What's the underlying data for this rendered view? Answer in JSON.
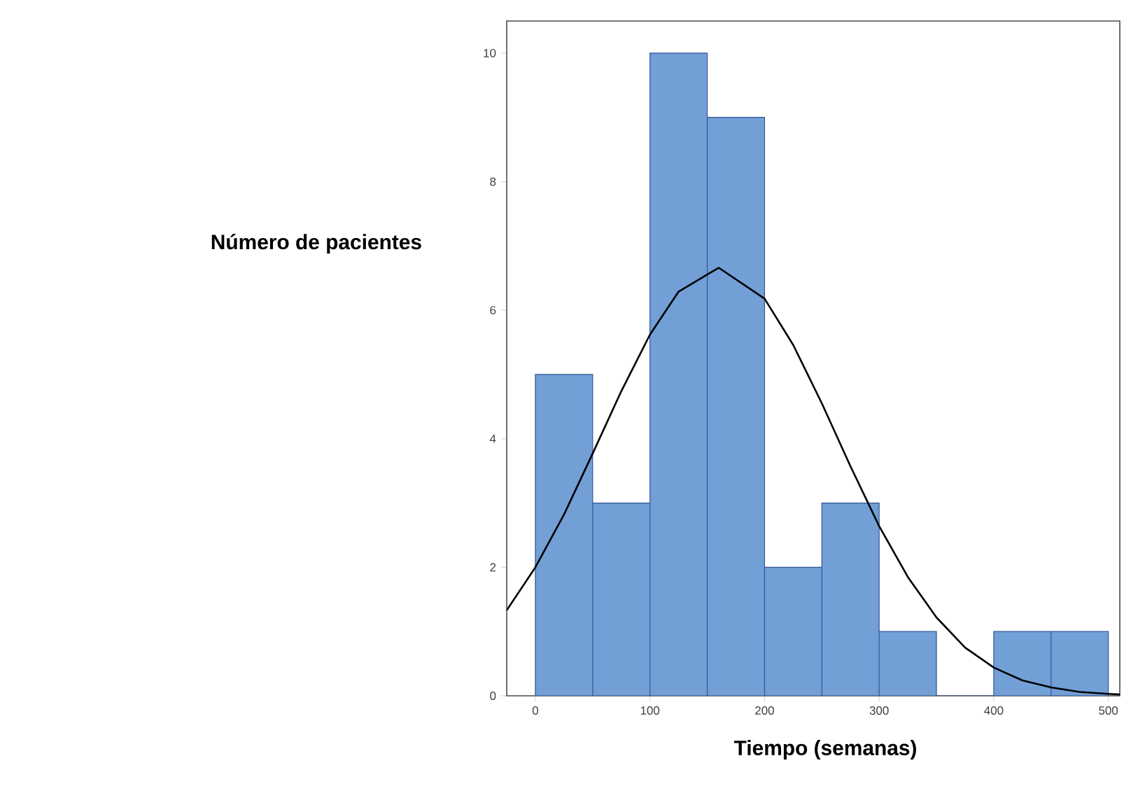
{
  "chart_data": {
    "type": "histogram",
    "xlabel": "Tiempo (semanas)",
    "ylabel": "Número de pacientes",
    "bins": [
      0,
      50,
      100,
      150,
      200,
      250,
      300,
      350,
      400,
      450,
      500
    ],
    "values": [
      5,
      3,
      10,
      9,
      2,
      3,
      1,
      0,
      1,
      1
    ],
    "color": "#729fd6",
    "series": [
      {
        "type": "line",
        "color": "#000000",
        "x": [
          -25,
          0,
          25,
          50,
          75,
          100,
          125,
          160,
          200,
          225,
          250,
          275,
          300,
          325,
          350,
          375,
          400,
          425,
          450,
          475,
          500,
          510
        ],
        "values": [
          1.33,
          2.0,
          2.82,
          3.77,
          4.74,
          5.62,
          6.29,
          6.66,
          6.18,
          5.46,
          4.55,
          3.57,
          2.64,
          1.85,
          1.22,
          0.75,
          0.44,
          0.24,
          0.13,
          0.06,
          0.03,
          0.02
        ]
      }
    ],
    "xlim": [
      -25,
      510
    ],
    "ylim": [
      0,
      10.5
    ],
    "xticks": [
      0,
      100,
      200,
      300,
      400,
      500
    ],
    "yticks": [
      0,
      2,
      4,
      6,
      8,
      10
    ]
  }
}
